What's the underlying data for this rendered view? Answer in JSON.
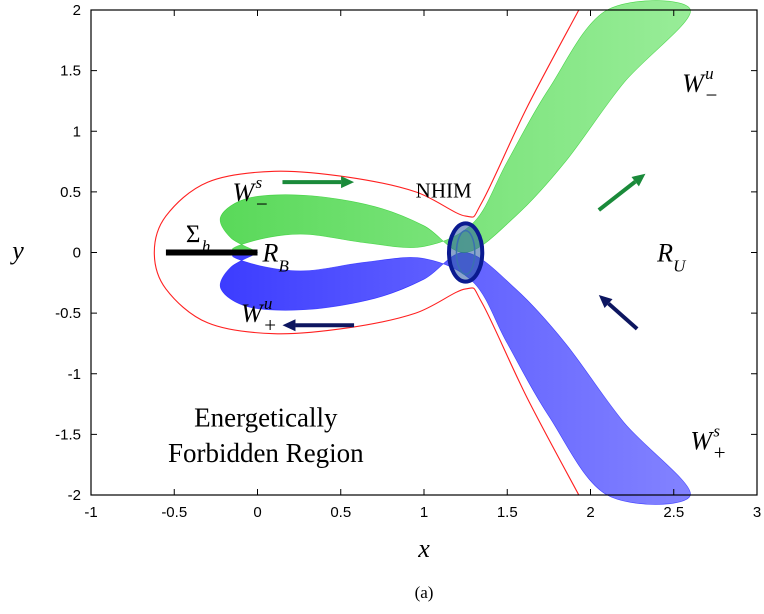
{
  "chart_data": {
    "type": "line",
    "title": "",
    "xlabel": "x",
    "ylabel": "y",
    "xlim": [
      -1,
      3
    ],
    "ylim": [
      -2,
      2
    ],
    "grid": false,
    "x_ticks": [
      "-1",
      "-0.5",
      "0",
      "0.5",
      "1",
      "1.5",
      "2",
      "2.5",
      "3"
    ],
    "y_ticks": [
      "2",
      "1.5",
      "1",
      "0.5",
      "0",
      "-0.5",
      "-1",
      "-1.5",
      "-2"
    ],
    "caption": "(a)",
    "colors": {
      "boundary": "#ff2020",
      "stable_manifold": "#1a1aff",
      "unstable_manifold": "#22cc22",
      "nhim": "#0a1a90",
      "arrow_green": "#1a8a3a",
      "arrow_navy": "#0d1660",
      "sigma_h": "#000000"
    },
    "series": [
      {
        "values": [
          [
            1.93,
            -2.0
          ],
          [
            1.62,
            -1.2
          ],
          [
            1.35,
            -0.42
          ],
          [
            1.25,
            -0.3
          ],
          [
            0.95,
            -0.5
          ],
          [
            0.55,
            -0.62
          ],
          [
            0.1,
            -0.67
          ],
          [
            -0.3,
            -0.58
          ],
          [
            -0.55,
            -0.3
          ],
          [
            -0.62,
            0.0
          ],
          [
            -0.55,
            0.3
          ],
          [
            -0.3,
            0.58
          ],
          [
            0.1,
            0.67
          ],
          [
            0.55,
            0.62
          ],
          [
            0.95,
            0.5
          ],
          [
            1.25,
            0.3
          ],
          [
            1.35,
            0.42
          ],
          [
            1.62,
            1.2
          ],
          [
            1.93,
            2.0
          ]
        ]
      },
      {
        "values": [
          [
            0.0,
            0.0
          ],
          [
            -0.16,
            0.12
          ],
          [
            -0.22,
            0.3
          ],
          [
            -0.05,
            0.45
          ],
          [
            0.3,
            0.47
          ],
          [
            0.7,
            0.38
          ],
          [
            1.0,
            0.22
          ],
          [
            1.25,
            0.0
          ],
          [
            1.55,
            0.3
          ],
          [
            1.85,
            0.75
          ],
          [
            2.2,
            1.4
          ],
          [
            2.6,
            2.0
          ],
          [
            2.1,
            2.0
          ],
          [
            1.75,
            1.35
          ],
          [
            1.5,
            0.75
          ],
          [
            1.3,
            0.25
          ],
          [
            1.0,
            0.05
          ],
          [
            0.65,
            0.08
          ],
          [
            0.3,
            0.15
          ],
          [
            0.05,
            0.12
          ],
          [
            -0.15,
            0.03
          ]
        ]
      },
      {
        "values": [
          [
            0.0,
            0.0
          ],
          [
            -0.16,
            -0.12
          ],
          [
            -0.22,
            -0.3
          ],
          [
            -0.05,
            -0.45
          ],
          [
            0.3,
            -0.47
          ],
          [
            0.7,
            -0.38
          ],
          [
            1.0,
            -0.22
          ],
          [
            1.25,
            0.0
          ],
          [
            1.55,
            -0.3
          ],
          [
            1.85,
            -0.75
          ],
          [
            2.2,
            -1.4
          ],
          [
            2.6,
            -2.0
          ],
          [
            2.1,
            -2.0
          ],
          [
            1.75,
            -1.35
          ],
          [
            1.5,
            -0.75
          ],
          [
            1.3,
            -0.25
          ],
          [
            1.0,
            -0.05
          ],
          [
            0.65,
            -0.08
          ],
          [
            0.3,
            -0.15
          ],
          [
            0.05,
            -0.12
          ],
          [
            -0.15,
            -0.03
          ]
        ]
      },
      {
        "values": [
          [
            1.25,
            0.0
          ]
        ],
        "rx": 0.1,
        "ry": 0.24
      },
      {
        "values": [
          [
            -0.55,
            0.0
          ],
          [
            0.0,
            0.0
          ]
        ]
      }
    ],
    "annotations": [
      {
        "id": "w-plus-s",
        "base": "W",
        "sup": "s",
        "sub": "+",
        "x": 2.6,
        "y": -1.55
      },
      {
        "id": "w-minus-u",
        "base": "W",
        "sup": "u",
        "sub": "−",
        "x": 2.55,
        "y": 1.4
      },
      {
        "id": "w-minus-s",
        "base": "W",
        "sup": "s",
        "sub": "−",
        "x": -0.15,
        "y": 0.5
      },
      {
        "id": "w-plus-u",
        "base": "W",
        "sup": "u",
        "sub": "+",
        "x": -0.1,
        "y": -0.5
      },
      {
        "id": "nhim",
        "text": "NHIM",
        "x": 0.95,
        "y": 0.52
      },
      {
        "id": "r-b",
        "base": "R",
        "sub": "B",
        "x": 0.03,
        "y": 0.0
      },
      {
        "id": "r-u",
        "base": "R",
        "sub": "U",
        "x": 2.4,
        "y": 0.0
      },
      {
        "id": "sigma-h",
        "base": "Σ",
        "sub": "h",
        "x": -0.43,
        "y": 0.16
      },
      {
        "id": "forbidden-1",
        "text": "Energetically",
        "x": 0.05,
        "y": -1.37
      },
      {
        "id": "forbidden-2",
        "text": "Forbidden Region",
        "x": 0.05,
        "y": -1.66
      }
    ],
    "arrows": [
      {
        "id": "arrow-w-minus-s",
        "color": "green",
        "from": [
          0.15,
          0.58
        ],
        "to": [
          0.58,
          0.58
        ]
      },
      {
        "id": "arrow-w-minus-u",
        "color": "green",
        "from": [
          2.05,
          0.35
        ],
        "to": [
          2.33,
          0.65
        ]
      },
      {
        "id": "arrow-w-plus-u",
        "color": "navy",
        "from": [
          0.58,
          -0.6
        ],
        "to": [
          0.15,
          -0.6
        ]
      },
      {
        "id": "arrow-w-plus-s",
        "color": "navy",
        "from": [
          2.28,
          -0.63
        ],
        "to": [
          2.05,
          -0.35
        ]
      }
    ]
  }
}
